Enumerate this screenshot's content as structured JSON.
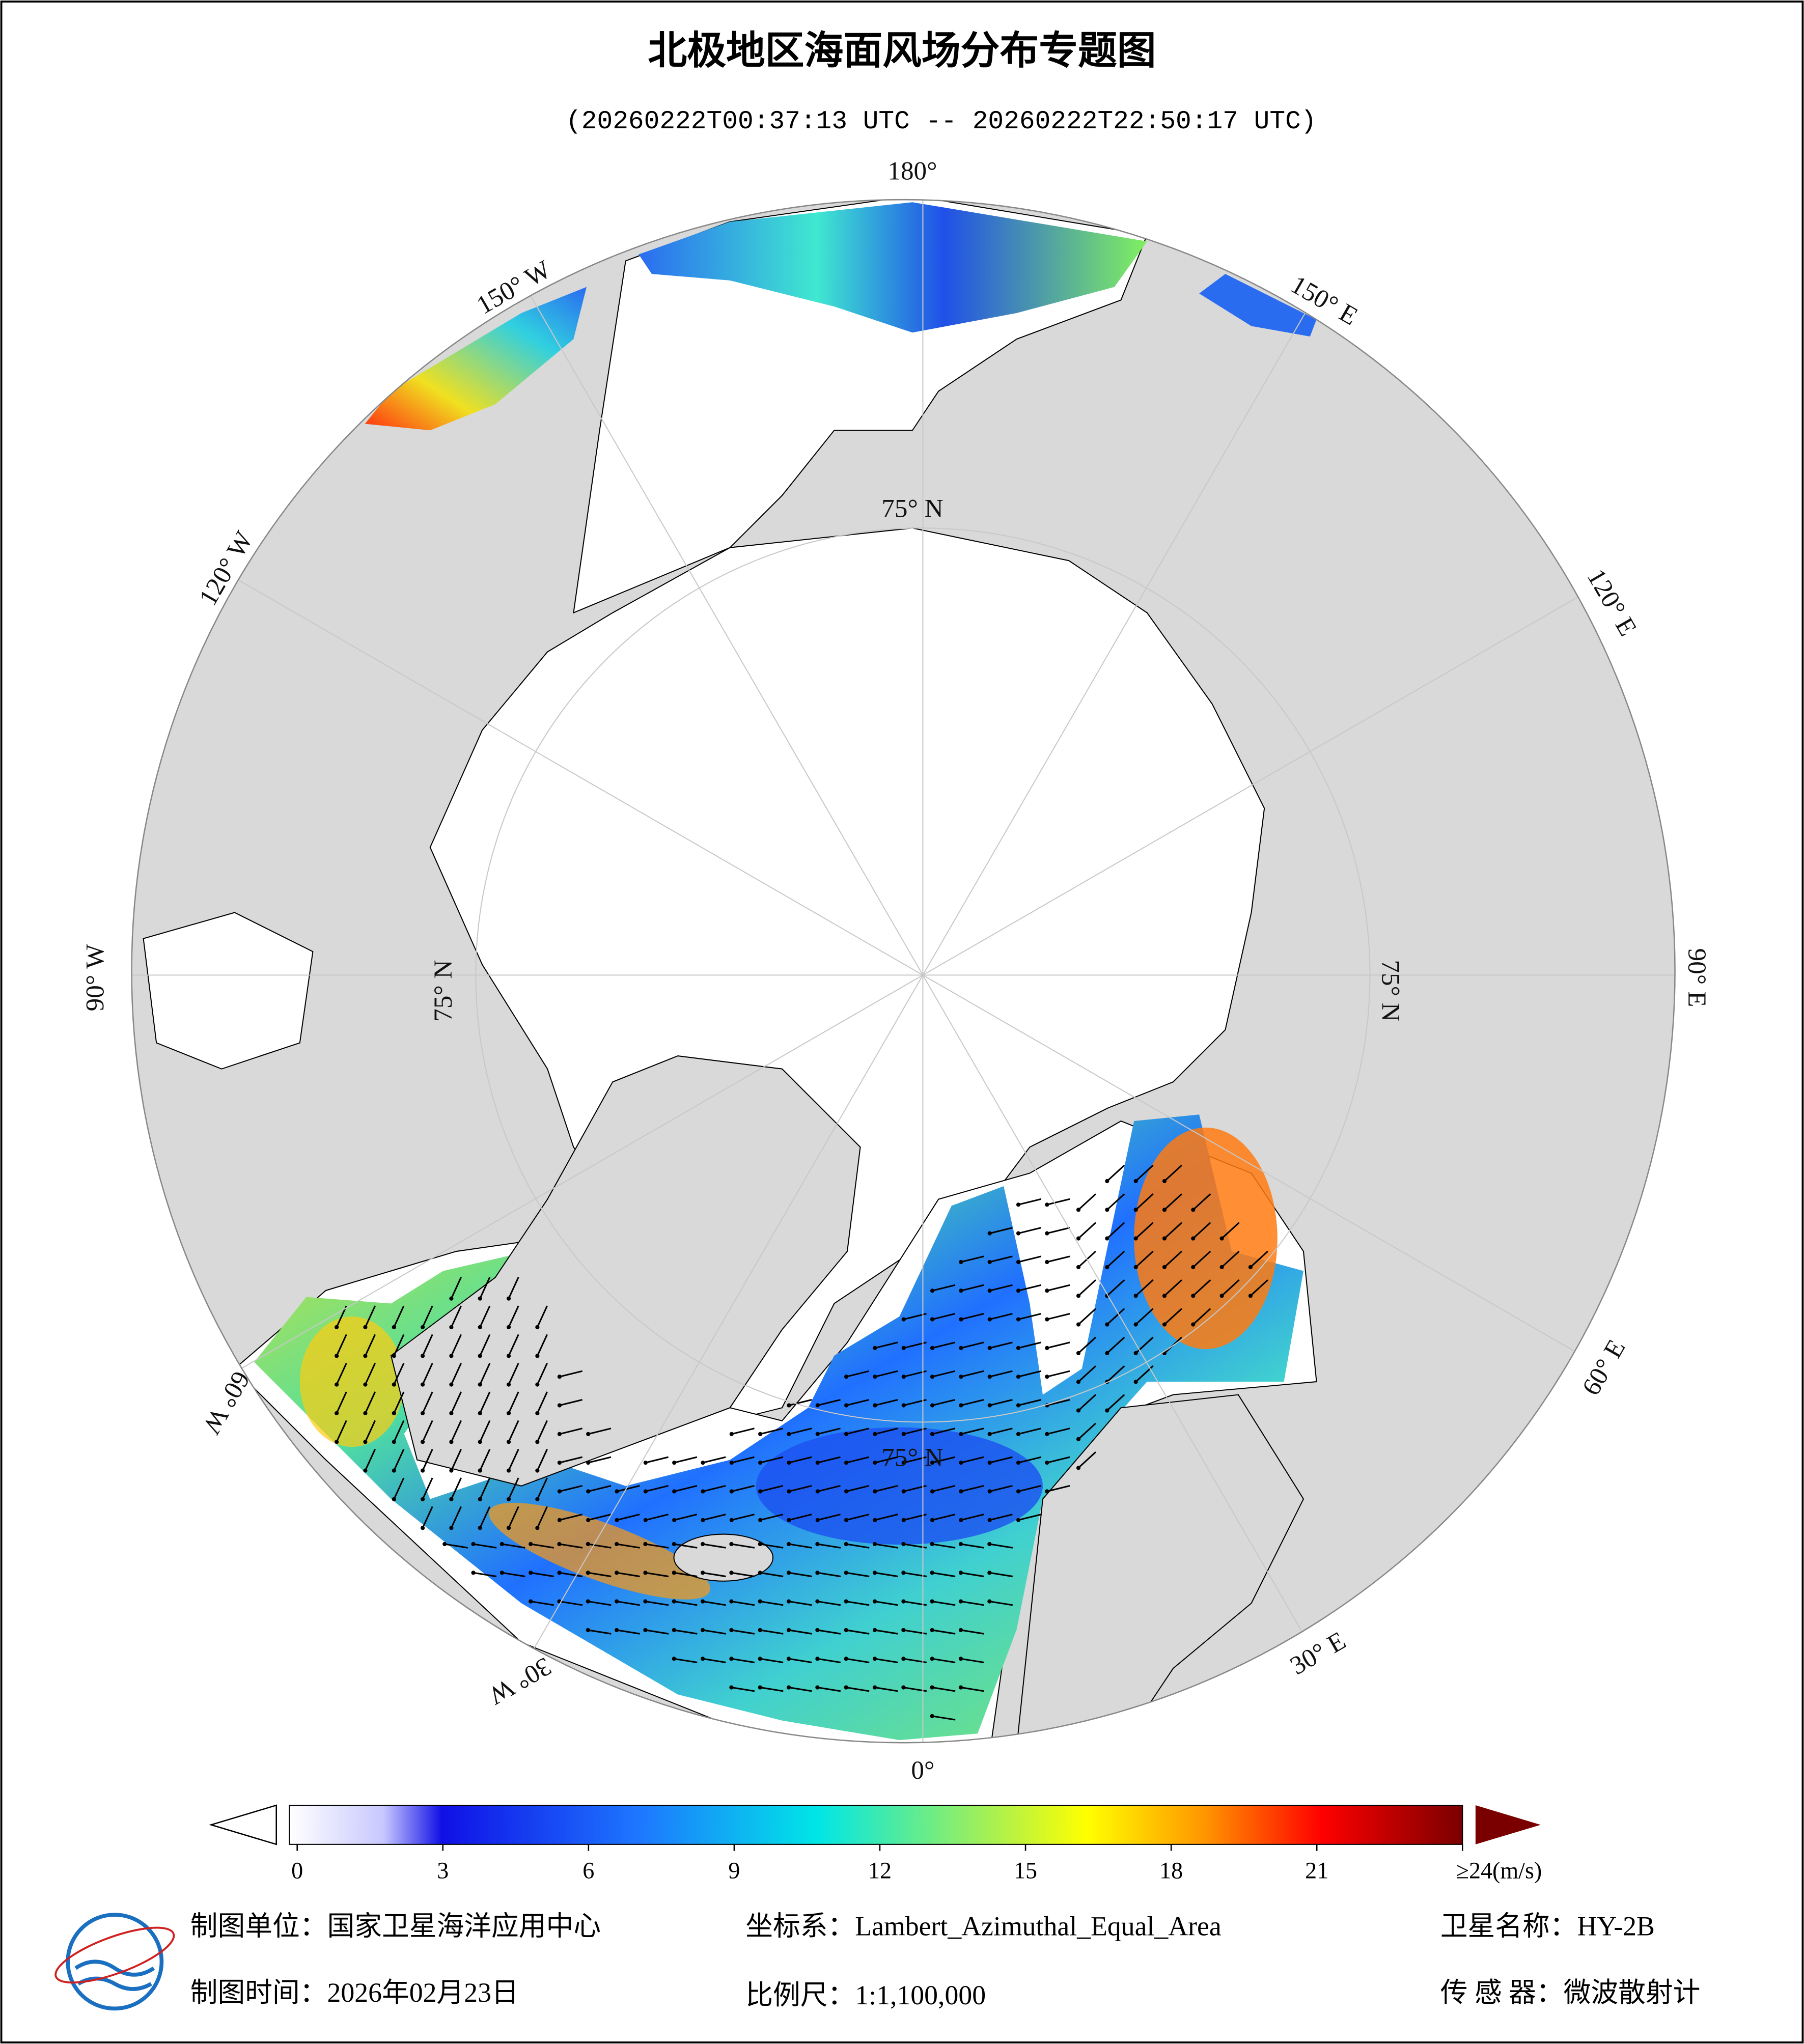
{
  "header": {
    "title": "北极地区海面风场分布专题图",
    "subtitle": "(20260222T00:37:13 UTC -- 20260222T22:50:17 UTC)"
  },
  "map": {
    "lon_labels": [
      "180°",
      "150° W",
      "120° W",
      "90° W",
      "60° W",
      "30° W",
      "0°",
      "30° E",
      "60° E",
      "90° E",
      "120° E",
      "150° E"
    ],
    "lat_labels": [
      "75° N",
      "75° N",
      "75° N",
      "75° N"
    ]
  },
  "colorbar": {
    "range": [
      0,
      24
    ],
    "ticks": [
      0,
      3,
      6,
      9,
      12,
      15,
      18,
      21,
      {
        "value": 24,
        "label": "≥24(m/s)"
      }
    ]
  },
  "footer": {
    "unit": "制图单位：国家卫星海洋应用中心",
    "crs": "坐标系：Lambert_Azimuthal_Equal_Area",
    "satellite": "卫星名称：HY-2B",
    "date": "制图时间：2026年02月23日",
    "scale": "比例尺：1:1,100,000",
    "sensor": "传 感 器：微波散射计"
  }
}
